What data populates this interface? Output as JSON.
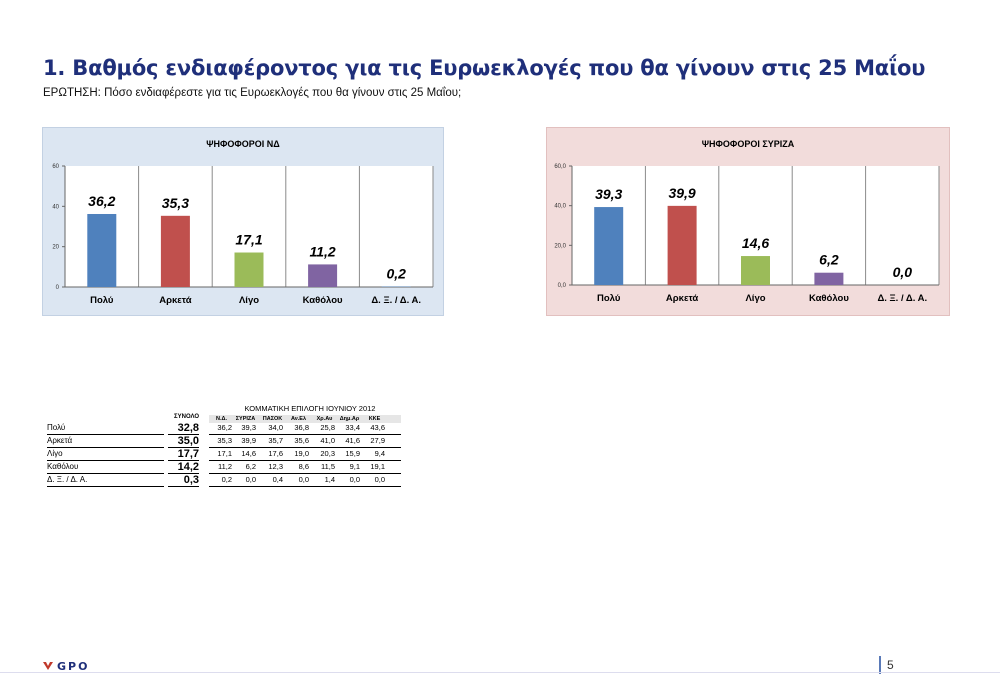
{
  "title": "1. Βαθμός ενδιαφέροντος για τις Ευρωεκλογές που θα γίνουν στις 25 Μαΐου",
  "question": "ΕΡΩΤΗΣΗ: Πόσο ενδιαφέρεστε για τις Ευρωεκλογές που θα γίνουν στις 25 Μαΐου;",
  "colors": {
    "bar1": "#4f81bd",
    "bar2": "#c0504d",
    "bar3": "#9bbb59",
    "bar4": "#8064a2",
    "title": "#1f2f7a"
  },
  "chart_data": [
    {
      "type": "bar",
      "title": "ΨΗΦΟΦΟΡΟΙ ΝΔ",
      "categories": [
        "Πολύ",
        "Αρκετά",
        "Λίγο",
        "Καθόλου",
        "Δ. Ξ. / Δ. Α."
      ],
      "values": [
        36.2,
        35.3,
        17.1,
        11.2,
        0.2
      ],
      "value_labels": [
        "36,2",
        "35,3",
        "17,1",
        "11,2",
        "0,2"
      ],
      "ylim": [
        0,
        60
      ],
      "yticks": [
        "0",
        "20",
        "40",
        "60"
      ],
      "xlabel": "",
      "ylabel": "",
      "grid": "vertical"
    },
    {
      "type": "bar",
      "title": "ΨΗΦΟΦΟΡΟΙ ΣΥΡΙΖΑ",
      "categories": [
        "Πολύ",
        "Αρκετά",
        "Λίγο",
        "Καθόλου",
        "Δ. Ξ. / Δ. Α."
      ],
      "values": [
        39.3,
        39.9,
        14.6,
        6.2,
        0.0
      ],
      "value_labels": [
        "39,3",
        "39,9",
        "14,6",
        "6,2",
        "0,0"
      ],
      "ylim": [
        0,
        60
      ],
      "yticks": [
        "0,0",
        "20,0",
        "40,0",
        "60,0"
      ],
      "xlabel": "",
      "ylabel": "",
      "grid": "vertical"
    }
  ],
  "table": {
    "group_header": "ΚΟΜΜΑΤΙΚΗ ΕΠΙΛΟΓΗ ΙΟΥΝΙΟΥ 2012",
    "total_header": "ΣΥΝΟΛΟ",
    "parties": [
      "Ν.Δ.",
      "ΣΥΡΙΖΑ",
      "ΠΑΣΟΚ",
      "Αν.Ελ",
      "Χρ.Αυ",
      "Δημ.Αρ",
      "ΚΚΕ"
    ],
    "rows": [
      {
        "label": "Πολύ",
        "total": "32,8",
        "values": [
          "36,2",
          "39,3",
          "34,0",
          "36,8",
          "25,8",
          "33,4",
          "43,6"
        ]
      },
      {
        "label": "Αρκετά",
        "total": "35,0",
        "values": [
          "35,3",
          "39,9",
          "35,7",
          "35,6",
          "41,0",
          "41,6",
          "27,9"
        ]
      },
      {
        "label": "Λίγο",
        "total": "17,7",
        "values": [
          "17,1",
          "14,6",
          "17,6",
          "19,0",
          "20,3",
          "15,9",
          "9,4"
        ]
      },
      {
        "label": "Καθόλου",
        "total": "14,2",
        "values": [
          "11,2",
          "6,2",
          "12,3",
          "8,6",
          "11,5",
          "9,1",
          "19,1"
        ]
      },
      {
        "label": "Δ. Ξ. / Δ. Α.",
        "total": "0,3",
        "values": [
          "0,2",
          "0,0",
          "0,4",
          "0,0",
          "1,4",
          "0,0",
          "0,0"
        ]
      }
    ]
  },
  "footer": {
    "logo_text": "GPO",
    "page_number": "5"
  }
}
